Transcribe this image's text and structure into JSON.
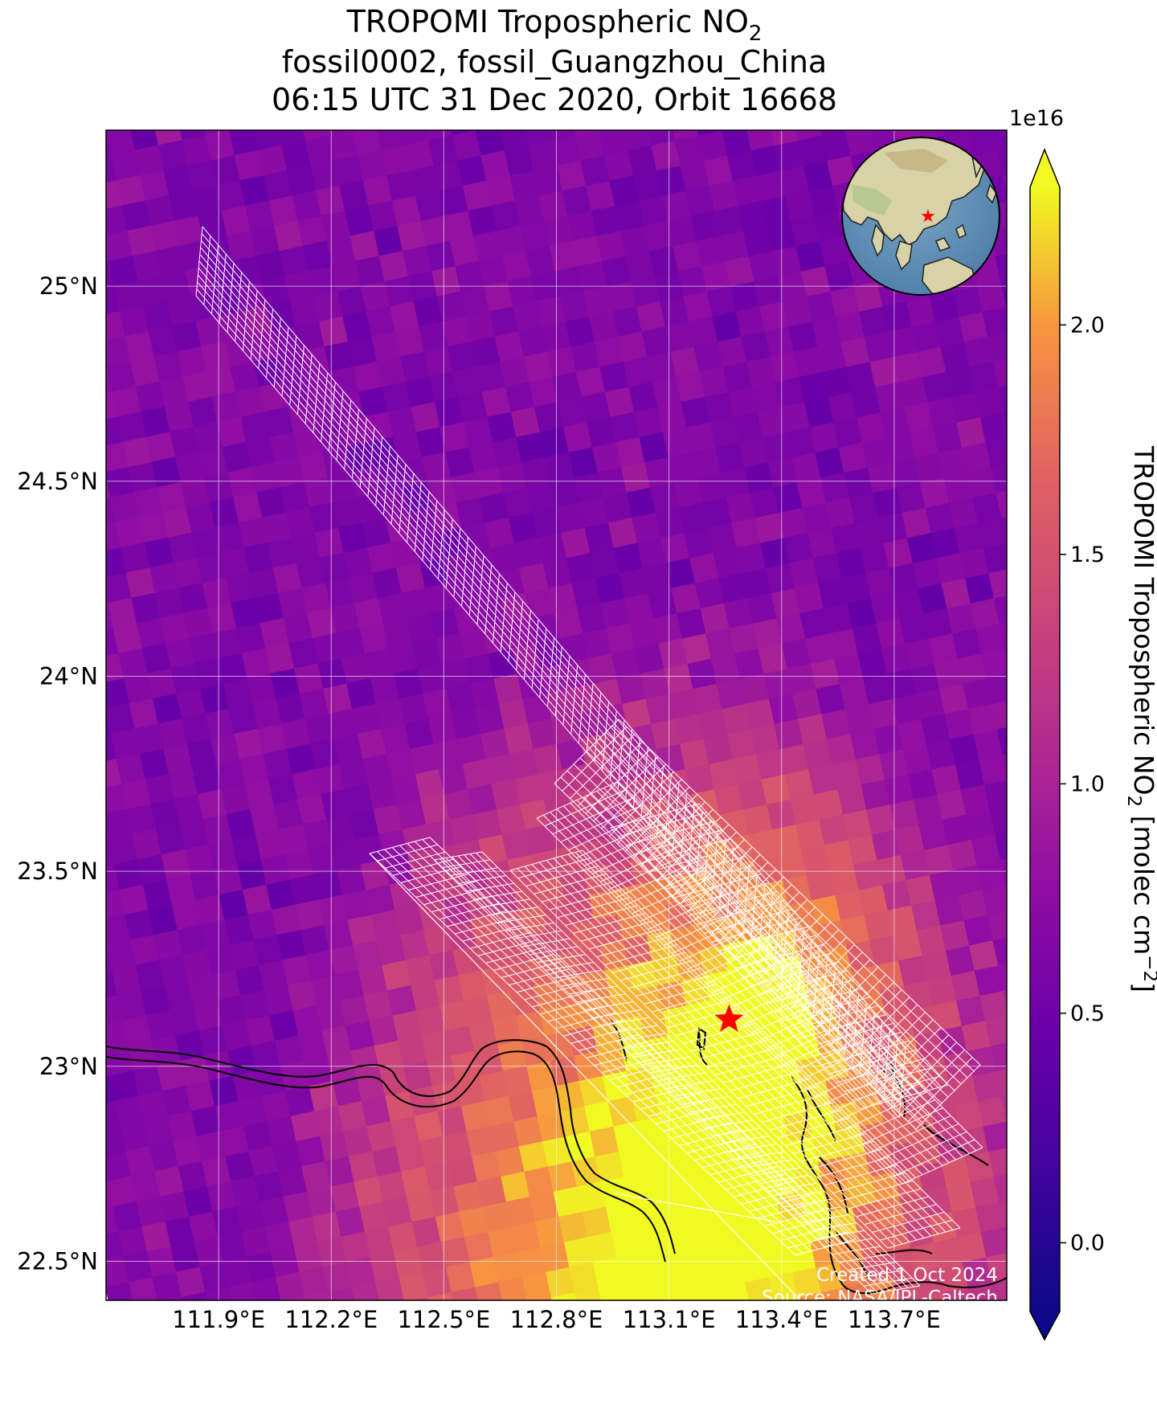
{
  "title": {
    "line1_prefix": "TROPOMI Tropospheric NO",
    "line1_sub": "2",
    "line2": "fossil0002, fossil_Guangzhou_China",
    "line3": "06:15 UTC 31 Dec 2020, Orbit 16668"
  },
  "map": {
    "lon_range": [
      111.6,
      114.0
    ],
    "lat_range": [
      22.4,
      25.4
    ],
    "lon_ticks": [
      111.9,
      112.2,
      112.5,
      112.8,
      113.1,
      113.4,
      113.7
    ],
    "lon_tick_labels": [
      "111.9°E",
      "112.2°E",
      "112.5°E",
      "112.8°E",
      "113.1°E",
      "113.4°E",
      "113.7°E"
    ],
    "lat_ticks": [
      22.5,
      23.0,
      23.5,
      24.0,
      24.5,
      25.0
    ],
    "lat_tick_labels": [
      "22.5°N",
      "23°N",
      "23.5°N",
      "24°N",
      "24.5°N",
      "25°N"
    ],
    "grid": true,
    "target": {
      "name": "fossil_Guangzhou_China",
      "lon": 113.26,
      "lat": 23.12,
      "marker": "red-star"
    },
    "target_color": "#ff0000",
    "sounding_outline_color": "#ffffff",
    "coastline_color": "#000000"
  },
  "colorbar": {
    "label_prefix": "TROPOMI Tropospheric NO",
    "label_sub": "2",
    "label_unit_prefix": " [molec cm",
    "label_unit_sup": "−2",
    "label_unit_suffix": "]",
    "exponent": "1e16",
    "range": [
      -0.15,
      2.3
    ],
    "ticks": [
      0.0,
      0.5,
      1.0,
      1.5,
      2.0
    ],
    "tick_labels": [
      "0.0",
      "0.5",
      "1.0",
      "1.5",
      "2.0"
    ],
    "colormap": "plasma",
    "extend": "both"
  },
  "inset": {
    "description": "globe",
    "marker": "red-star"
  },
  "credits": {
    "line1": "Created 1 Oct 2024",
    "line2": "Source: NASA/JPL-Caltech"
  }
}
